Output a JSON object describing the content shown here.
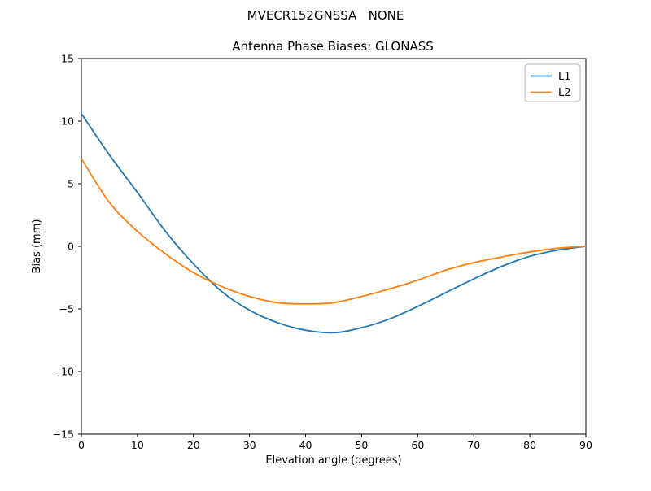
{
  "figure": {
    "suptitle": "MVECR152GNSSA   NONE",
    "axes_title": "Antenna Phase Biases: GLONASS"
  },
  "chart_data": {
    "type": "line",
    "suptitle": "MVECR152GNSSA   NONE",
    "title": "Antenna Phase Biases: GLONASS",
    "xlabel": "Elevation angle (degrees)",
    "ylabel": "Bias (mm)",
    "xlim": [
      0,
      90
    ],
    "ylim": [
      -15,
      15
    ],
    "grid": false,
    "legend_position": "upper right",
    "xticks": [
      {
        "value": 0,
        "label": "0"
      },
      {
        "value": 10,
        "label": "10"
      },
      {
        "value": 20,
        "label": "20"
      },
      {
        "value": 30,
        "label": "30"
      },
      {
        "value": 40,
        "label": "40"
      },
      {
        "value": 50,
        "label": "50"
      },
      {
        "value": 60,
        "label": "60"
      },
      {
        "value": 70,
        "label": "70"
      },
      {
        "value": 80,
        "label": "80"
      },
      {
        "value": 90,
        "label": "90"
      }
    ],
    "yticks": [
      {
        "value": 15,
        "label": "15"
      },
      {
        "value": 10,
        "label": "10"
      },
      {
        "value": 5,
        "label": "5"
      },
      {
        "value": 0,
        "label": "0"
      },
      {
        "value": -5,
        "label": "−5"
      },
      {
        "value": -10,
        "label": "−10"
      },
      {
        "value": -15,
        "label": "−15"
      }
    ],
    "x": [
      0,
      5,
      10,
      15,
      20,
      25,
      30,
      35,
      40,
      45,
      50,
      55,
      60,
      65,
      70,
      75,
      80,
      85,
      90
    ],
    "series": [
      {
        "name": "L1",
        "color": "#1f77b4",
        "values": [
          10.6,
          7.3,
          4.3,
          1.2,
          -1.4,
          -3.6,
          -5.1,
          -6.1,
          -6.7,
          -6.9,
          -6.5,
          -5.8,
          -4.8,
          -3.7,
          -2.6,
          -1.6,
          -0.8,
          -0.3,
          0.0
        ]
      },
      {
        "name": "L2",
        "color": "#ff7f0e",
        "values": [
          7.0,
          3.5,
          1.2,
          -0.6,
          -2.1,
          -3.2,
          -4.0,
          -4.5,
          -4.6,
          -4.5,
          -4.0,
          -3.4,
          -2.7,
          -1.9,
          -1.3,
          -0.85,
          -0.45,
          -0.15,
          0.0
        ]
      }
    ]
  }
}
